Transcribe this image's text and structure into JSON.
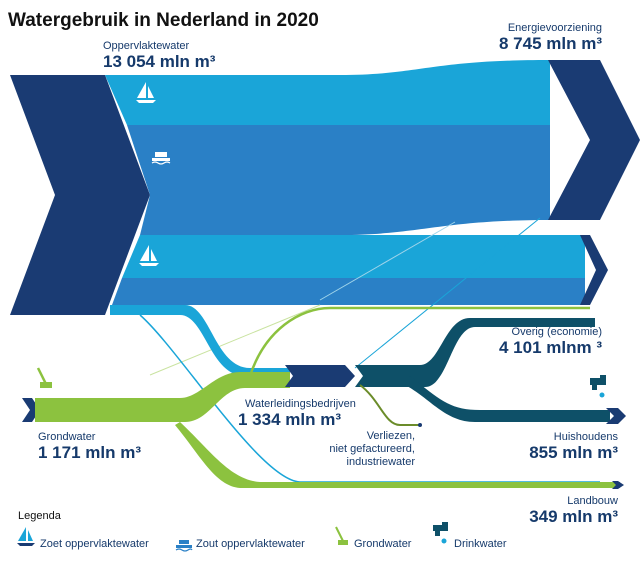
{
  "title": "Watergebruik in Nederland in 2020",
  "sources": {
    "surface": {
      "label": "Oppervlaktewater",
      "value": "13 054 mln m³"
    },
    "ground": {
      "label": "Grondwater",
      "value": "1 171 mln m³"
    }
  },
  "hub": {
    "label": "Waterleidingsbedrijven",
    "value": "1 334 mln m³"
  },
  "losses": {
    "line1": "Verliezen,",
    "line2": "niet gefactureerd,",
    "line3": "industriewater"
  },
  "destinations": {
    "energy": {
      "label": "Energievoorziening",
      "value": "8 745 mln m³"
    },
    "overig": {
      "label": "Overig (economie)",
      "value": "4 101 mlnm ³"
    },
    "huishoudens": {
      "label": "Huishoudens",
      "value": "855 mln m³"
    },
    "landbouw": {
      "label": "Landbouw",
      "value": "349 mln m³"
    }
  },
  "legend": {
    "title": "Legenda",
    "items": [
      {
        "label": "Zoet oppervlaktewater",
        "icon": "sailboat-icon"
      },
      {
        "label": "Zout oppervlaktewater",
        "icon": "ship-icon"
      },
      {
        "label": "Grondwater",
        "icon": "well-pump-icon"
      },
      {
        "label": "Drinkwater",
        "icon": "water-tap-icon"
      }
    ]
  },
  "colors": {
    "surface_dark": "#1a3b73",
    "fresh_surface": "#1aa5d8",
    "salt_surface": "#2a80c6",
    "groundwater": "#8cc23f",
    "drinkwater": "#0e5068",
    "navy": "#1a3b73"
  }
}
